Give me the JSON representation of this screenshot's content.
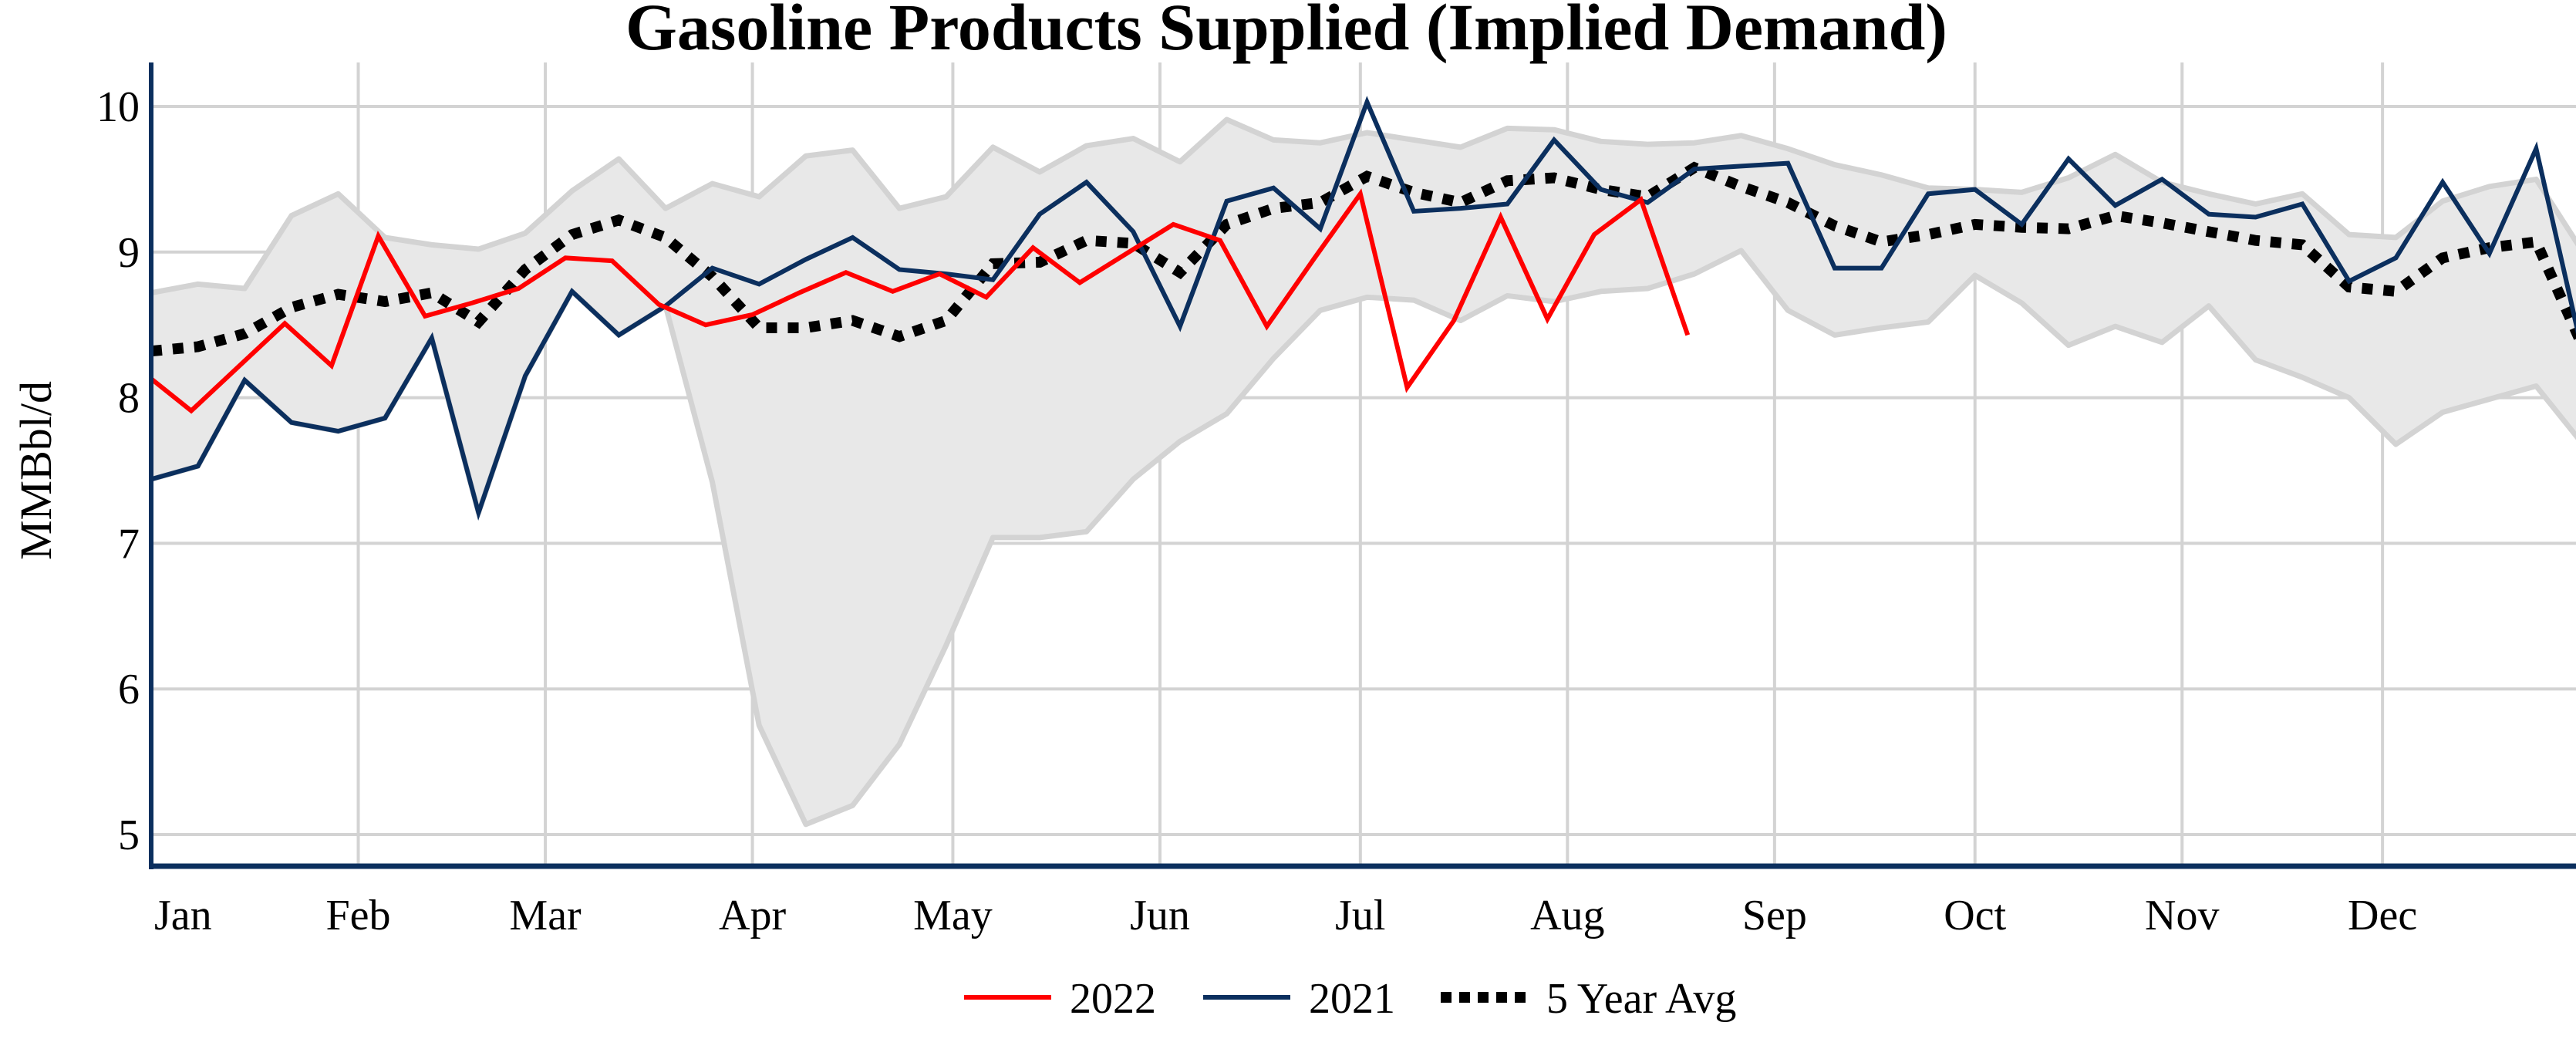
{
  "chart_data": {
    "type": "line",
    "title": "Gasoline Products Supplied (Implied Demand)",
    "xlabel": "",
    "ylabel": "MMBbl/d",
    "x_axis": "date (month-day, Jan–Dec)",
    "x_tick_labels": [
      "Jan",
      "Feb",
      "Mar",
      "Apr",
      "May",
      "Jun",
      "Jul",
      "Aug",
      "Sep",
      "Oct",
      "Nov",
      "Dec"
    ],
    "x_tick_dates": [
      "01-01",
      "02-01",
      "03-01",
      "04-01",
      "05-01",
      "06-01",
      "07-01",
      "08-01",
      "09-01",
      "10-01",
      "11-01",
      "12-01"
    ],
    "y_ticks": [
      5,
      6,
      7,
      8,
      9,
      10
    ],
    "ylim": [
      4.78,
      10.3
    ],
    "grid": true,
    "legend_placement": "bottom-center",
    "colors": {
      "s2022": "#ff0000",
      "s2021": "#0b2f5e",
      "avg": "#000000",
      "band_fill": "#e8e8e8",
      "band_line": "#d3d3d3",
      "axis": "#0b2f5e",
      "grid": "#d3d3d3"
    },
    "weekly_dates": [
      "01-01",
      "01-08",
      "01-15",
      "01-22",
      "01-29",
      "02-05",
      "02-12",
      "02-19",
      "02-26",
      "03-05",
      "03-12",
      "03-19",
      "03-26",
      "04-02",
      "04-09",
      "04-16",
      "04-23",
      "04-30",
      "05-07",
      "05-14",
      "05-21",
      "05-28",
      "06-04",
      "06-11",
      "06-18",
      "06-25",
      "07-02",
      "07-09",
      "07-16",
      "07-23",
      "07-30",
      "08-06",
      "08-13",
      "08-20",
      "08-27",
      "09-03",
      "09-10",
      "09-17",
      "09-24",
      "10-01",
      "10-08",
      "10-15",
      "10-22",
      "10-29",
      "11-05",
      "11-12",
      "11-19",
      "11-26",
      "12-03",
      "12-10",
      "12-17",
      "12-24",
      "12-31"
    ],
    "range_band": {
      "upper": [
        8.72,
        8.78,
        8.75,
        9.25,
        9.4,
        9.1,
        9.05,
        9.02,
        9.13,
        9.42,
        9.64,
        9.3,
        9.47,
        9.38,
        9.66,
        9.7,
        9.3,
        9.38,
        9.72,
        9.55,
        9.73,
        9.78,
        9.62,
        9.91,
        9.77,
        9.75,
        9.82,
        9.77,
        9.72,
        9.85,
        9.84,
        9.76,
        9.74,
        9.75,
        9.8,
        9.71,
        9.6,
        9.53,
        9.44,
        9.43,
        9.41,
        9.51,
        9.67,
        9.48,
        9.4,
        9.33,
        9.4,
        9.12,
        9.1,
        9.35,
        9.45,
        9.5,
        9.0
      ],
      "lower": [
        7.44,
        7.53,
        8.12,
        7.83,
        7.77,
        7.86,
        8.41,
        7.21,
        8.15,
        8.73,
        8.43,
        8.63,
        7.42,
        5.75,
        5.07,
        5.2,
        5.62,
        6.3,
        7.04,
        7.04,
        7.08,
        7.44,
        7.7,
        7.89,
        8.27,
        8.6,
        8.69,
        8.67,
        8.53,
        8.7,
        8.66,
        8.73,
        8.75,
        8.85,
        9.01,
        8.6,
        8.43,
        8.48,
        8.52,
        8.84,
        8.65,
        8.36,
        8.49,
        8.38,
        8.63,
        8.26,
        8.14,
        8.0,
        7.68,
        7.9,
        7.99,
        8.08,
        7.68
      ]
    },
    "series": [
      {
        "name": "2022",
        "x": [
          "01-01",
          "01-07",
          "01-14",
          "01-21",
          "01-28",
          "02-04",
          "02-11",
          "02-18",
          "02-25",
          "03-04",
          "03-11",
          "03-18",
          "03-25",
          "04-01",
          "04-08",
          "04-15",
          "04-22",
          "04-29",
          "05-06",
          "05-13",
          "05-20",
          "05-27",
          "06-03",
          "06-10",
          "06-17",
          "06-24",
          "07-01",
          "07-08",
          "07-15",
          "07-22",
          "07-29",
          "08-05",
          "08-12",
          "08-19"
        ],
        "values": [
          8.13,
          7.91,
          8.21,
          8.51,
          8.22,
          9.11,
          8.56,
          8.65,
          8.75,
          8.96,
          8.94,
          8.64,
          8.5,
          8.57,
          8.72,
          8.86,
          8.73,
          8.85,
          8.69,
          9.03,
          8.79,
          8.99,
          9.19,
          9.08,
          8.49,
          8.95,
          9.4,
          8.07,
          8.53,
          9.24,
          8.54,
          9.12,
          9.36,
          8.43
        ]
      },
      {
        "name": "2021",
        "values": [
          7.44,
          7.53,
          8.12,
          7.83,
          7.77,
          7.86,
          8.41,
          7.21,
          8.15,
          8.73,
          8.43,
          8.63,
          8.89,
          8.78,
          8.95,
          9.1,
          8.88,
          8.85,
          8.81,
          9.26,
          9.48,
          9.14,
          8.49,
          9.35,
          9.44,
          9.16,
          10.03,
          9.28,
          9.3,
          9.33,
          9.77,
          9.43,
          9.34,
          9.57,
          9.59,
          9.61,
          8.89,
          8.89,
          9.4,
          9.43,
          9.19,
          9.64,
          9.32,
          9.5,
          9.26,
          9.24,
          9.33,
          8.8,
          8.96,
          9.48,
          8.99,
          9.71,
          8.3
        ]
      },
      {
        "name": "5 Year Avg",
        "values": [
          8.32,
          8.35,
          8.44,
          8.62,
          8.71,
          8.66,
          8.72,
          8.52,
          8.88,
          9.12,
          9.22,
          9.1,
          8.83,
          8.48,
          8.48,
          8.53,
          8.42,
          8.53,
          8.92,
          8.93,
          9.08,
          9.06,
          8.86,
          9.19,
          9.3,
          9.34,
          9.52,
          9.41,
          9.34,
          9.49,
          9.51,
          9.43,
          9.38,
          9.58,
          9.45,
          9.34,
          9.18,
          9.07,
          9.12,
          9.19,
          9.17,
          9.16,
          9.25,
          9.2,
          9.14,
          9.08,
          9.05,
          8.76,
          8.73,
          8.96,
          9.03,
          9.07,
          8.35
        ]
      }
    ]
  }
}
